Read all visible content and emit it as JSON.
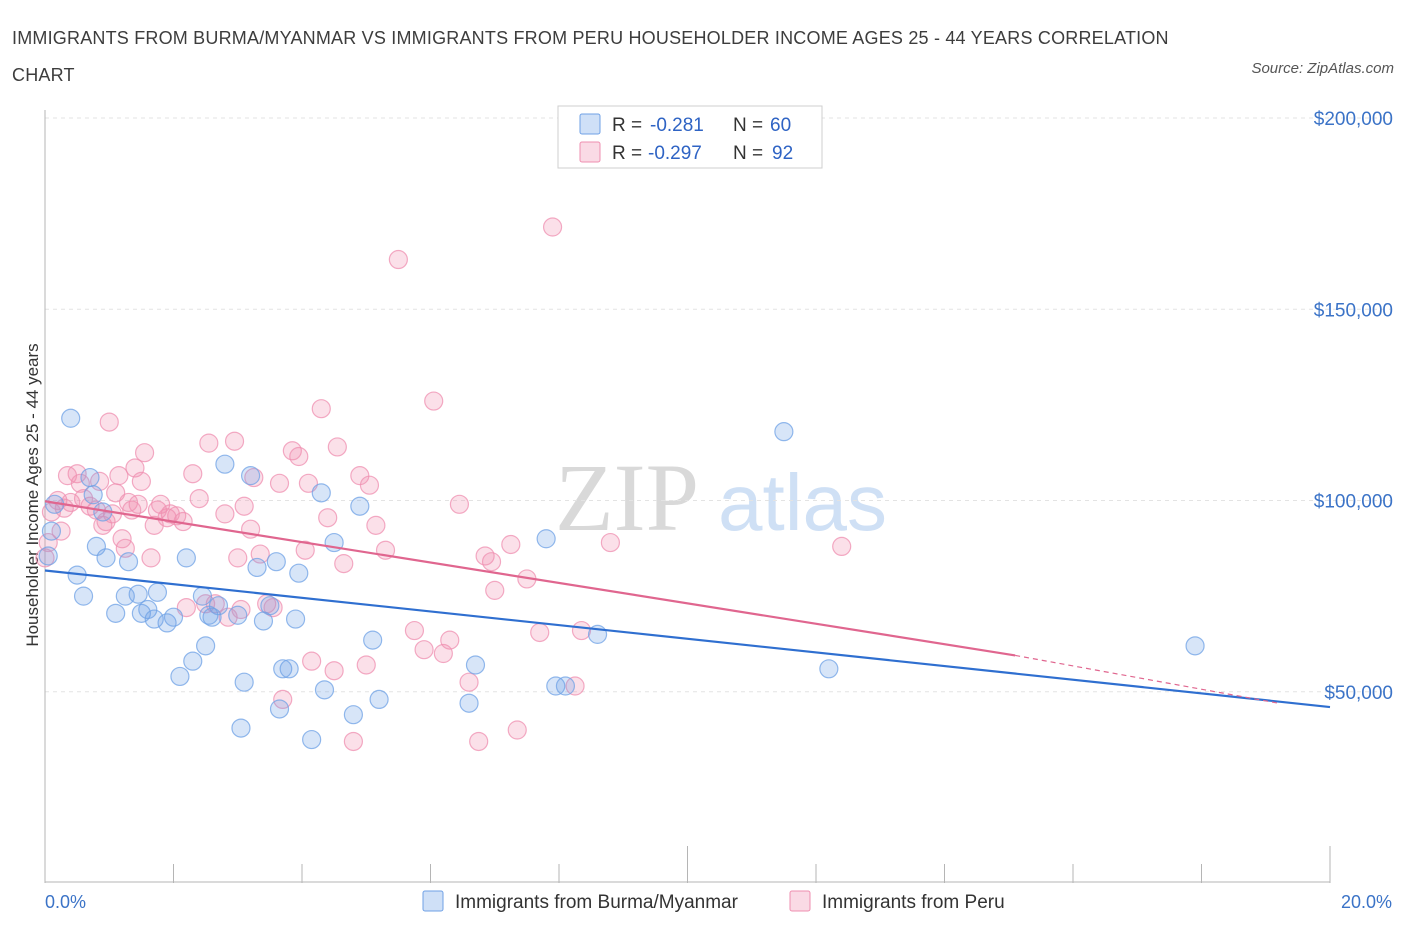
{
  "title": "IMMIGRANTS FROM BURMA/MYANMAR VS IMMIGRANTS FROM PERU HOUSEHOLDER INCOME AGES 25 - 44 YEARS CORRELATION CHART",
  "source": "Source: ZipAtlas.com",
  "watermark": {
    "zip": "ZIP",
    "atlas": "atlas"
  },
  "legend": {
    "r_label": "R =",
    "n_label": "N =",
    "rows": [
      {
        "r": "-0.281",
        "n": "60",
        "color": "#6fa1e6"
      },
      {
        "r": "-0.297",
        "n": "92",
        "color": "#ef8fb0"
      }
    ]
  },
  "bottom_legend": [
    {
      "label": "Immigrants from Burma/Myanmar",
      "color": "#6fa1e6"
    },
    {
      "label": "Immigrants from Peru",
      "color": "#ef8fb0"
    }
  ],
  "chart_data": {
    "type": "scatter",
    "xlabel": "",
    "ylabel": "Householder Income Ages 25 - 44 years",
    "xlim": [
      0,
      20
    ],
    "ylim": [
      0,
      200000
    ],
    "x_tick_labels": [
      "0.0%",
      "20.0%"
    ],
    "y_ticks": [
      50000,
      100000,
      150000,
      200000
    ],
    "y_tick_labels": [
      "$50,000",
      "$100,000",
      "$150,000",
      "$200,000"
    ],
    "grid": true,
    "series": [
      {
        "name": "Immigrants from Burma/Myanmar",
        "color": "#6fa1e6",
        "r": -0.281,
        "n": 60,
        "trend": {
          "x0": 0,
          "y0": 81700,
          "x1": 20,
          "y1": 46000
        },
        "points": [
          [
            0.1,
            92000
          ],
          [
            0.15,
            99000
          ],
          [
            0.4,
            121500
          ],
          [
            0.5,
            80500
          ],
          [
            0.6,
            75000
          ],
          [
            0.7,
            106000
          ],
          [
            0.75,
            101500
          ],
          [
            0.8,
            88000
          ],
          [
            0.9,
            97000
          ],
          [
            0.95,
            85000
          ],
          [
            1.1,
            70500
          ],
          [
            1.25,
            75000
          ],
          [
            1.3,
            84000
          ],
          [
            1.5,
            70500
          ],
          [
            1.6,
            71500
          ],
          [
            1.7,
            69000
          ],
          [
            1.75,
            76000
          ],
          [
            1.9,
            68000
          ],
          [
            2.0,
            69500
          ],
          [
            2.1,
            54000
          ],
          [
            2.2,
            85000
          ],
          [
            2.3,
            58000
          ],
          [
            2.45,
            75000
          ],
          [
            2.5,
            62000
          ],
          [
            2.6,
            69500
          ],
          [
            2.7,
            72500
          ],
          [
            2.8,
            109500
          ],
          [
            3.0,
            70000
          ],
          [
            3.05,
            40500
          ],
          [
            3.1,
            52500
          ],
          [
            3.2,
            106500
          ],
          [
            3.3,
            82500
          ],
          [
            3.4,
            68500
          ],
          [
            3.5,
            72500
          ],
          [
            3.6,
            84000
          ],
          [
            3.65,
            45500
          ],
          [
            3.8,
            56000
          ],
          [
            3.9,
            69000
          ],
          [
            3.95,
            81000
          ],
          [
            4.15,
            37500
          ],
          [
            4.3,
            102000
          ],
          [
            4.35,
            50500
          ],
          [
            4.5,
            89000
          ],
          [
            4.8,
            44000
          ],
          [
            4.9,
            98500
          ],
          [
            5.1,
            63500
          ],
          [
            5.2,
            48000
          ],
          [
            6.6,
            47000
          ],
          [
            6.7,
            57000
          ],
          [
            7.8,
            90000
          ],
          [
            7.95,
            51500
          ],
          [
            8.1,
            51500
          ],
          [
            8.6,
            65000
          ],
          [
            11.5,
            118000
          ],
          [
            12.2,
            56000
          ],
          [
            17.9,
            62000
          ],
          [
            0.05,
            85500
          ],
          [
            1.45,
            75500
          ],
          [
            2.55,
            70000
          ],
          [
            3.7,
            56000
          ]
        ]
      },
      {
        "name": "Immigrants from Peru",
        "color": "#ef8fb0",
        "r": -0.297,
        "n": 92,
        "trend": {
          "x0": 0,
          "y0": 99800,
          "x1": 15.1,
          "y1": 59500,
          "dash_x1": 19.2,
          "dash_y1": 47000
        },
        "points": [
          [
            0.0,
            85000
          ],
          [
            0.05,
            89000
          ],
          [
            0.1,
            97000
          ],
          [
            0.2,
            100000
          ],
          [
            0.25,
            92000
          ],
          [
            0.3,
            98000
          ],
          [
            0.35,
            106500
          ],
          [
            0.4,
            99500
          ],
          [
            0.5,
            107000
          ],
          [
            0.55,
            104500
          ],
          [
            0.6,
            100500
          ],
          [
            0.7,
            98500
          ],
          [
            0.8,
            97500
          ],
          [
            0.85,
            105000
          ],
          [
            0.9,
            93500
          ],
          [
            0.95,
            94500
          ],
          [
            1.0,
            120500
          ],
          [
            1.05,
            96500
          ],
          [
            1.1,
            102000
          ],
          [
            1.15,
            106500
          ],
          [
            1.2,
            90000
          ],
          [
            1.25,
            87500
          ],
          [
            1.3,
            99500
          ],
          [
            1.35,
            97500
          ],
          [
            1.4,
            108500
          ],
          [
            1.45,
            99000
          ],
          [
            1.5,
            105000
          ],
          [
            1.55,
            112500
          ],
          [
            1.65,
            85000
          ],
          [
            1.7,
            93500
          ],
          [
            1.75,
            97500
          ],
          [
            1.8,
            99000
          ],
          [
            1.9,
            95500
          ],
          [
            1.95,
            96500
          ],
          [
            2.05,
            96000
          ],
          [
            2.15,
            94500
          ],
          [
            2.2,
            72000
          ],
          [
            2.3,
            107000
          ],
          [
            2.4,
            100500
          ],
          [
            2.5,
            73000
          ],
          [
            2.55,
            115000
          ],
          [
            2.65,
            73000
          ],
          [
            2.8,
            96500
          ],
          [
            2.85,
            69500
          ],
          [
            2.95,
            115500
          ],
          [
            3.0,
            85000
          ],
          [
            3.05,
            71500
          ],
          [
            3.1,
            98500
          ],
          [
            3.2,
            92500
          ],
          [
            3.25,
            106000
          ],
          [
            3.35,
            86000
          ],
          [
            3.45,
            73000
          ],
          [
            3.55,
            72000
          ],
          [
            3.65,
            104500
          ],
          [
            3.7,
            48000
          ],
          [
            3.85,
            113000
          ],
          [
            3.95,
            111500
          ],
          [
            4.05,
            87000
          ],
          [
            4.1,
            104500
          ],
          [
            4.15,
            58000
          ],
          [
            4.3,
            124000
          ],
          [
            4.4,
            95500
          ],
          [
            4.5,
            55500
          ],
          [
            4.55,
            114000
          ],
          [
            4.65,
            83500
          ],
          [
            4.8,
            37000
          ],
          [
            4.9,
            106500
          ],
          [
            5.0,
            57000
          ],
          [
            5.05,
            104000
          ],
          [
            5.15,
            93500
          ],
          [
            5.3,
            87000
          ],
          [
            5.5,
            163000
          ],
          [
            5.75,
            66000
          ],
          [
            5.9,
            61000
          ],
          [
            6.05,
            126000
          ],
          [
            6.2,
            60000
          ],
          [
            6.3,
            63500
          ],
          [
            6.45,
            99000
          ],
          [
            6.6,
            52500
          ],
          [
            6.75,
            37000
          ],
          [
            6.85,
            85500
          ],
          [
            6.95,
            84000
          ],
          [
            7.0,
            76500
          ],
          [
            7.25,
            88500
          ],
          [
            7.35,
            40000
          ],
          [
            7.5,
            79500
          ],
          [
            7.7,
            65500
          ],
          [
            7.9,
            171500
          ],
          [
            8.25,
            51500
          ],
          [
            8.35,
            66000
          ],
          [
            8.8,
            89000
          ],
          [
            12.4,
            88000
          ]
        ]
      }
    ]
  }
}
